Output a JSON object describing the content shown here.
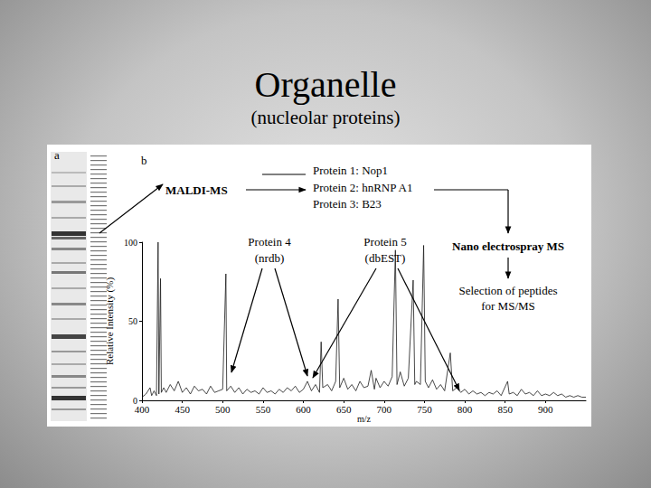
{
  "chart_data": {
    "type": "line",
    "title": "Organelle",
    "subtitle": "(nucleolar proteins)",
    "panel_labels": [
      "a",
      "b"
    ],
    "x_label": "m/z",
    "y_label": "Relative Intensity (%)",
    "x": [
      400,
      405,
      410,
      412,
      415,
      418,
      420,
      421,
      423,
      424,
      427,
      430,
      435,
      440,
      445,
      450,
      455,
      460,
      465,
      470,
      475,
      480,
      485,
      490,
      495,
      500,
      504,
      505,
      510,
      515,
      520,
      525,
      530,
      535,
      540,
      545,
      550,
      555,
      560,
      565,
      570,
      575,
      580,
      585,
      590,
      595,
      600,
      605,
      610,
      615,
      620,
      622,
      624,
      630,
      635,
      640,
      643,
      645,
      650,
      655,
      660,
      665,
      670,
      675,
      680,
      684,
      688,
      690,
      695,
      700,
      705,
      710,
      714,
      716,
      720,
      725,
      730,
      736,
      738,
      740,
      745,
      749,
      751,
      755,
      760,
      765,
      770,
      775,
      782,
      785,
      790,
      795,
      800,
      805,
      810,
      815,
      820,
      825,
      830,
      835,
      840,
      845,
      853,
      855,
      860,
      865,
      870,
      875,
      880,
      885,
      890,
      895,
      900,
      905,
      910,
      915,
      920,
      925,
      930,
      935,
      940,
      945,
      950
    ],
    "values": [
      2,
      4,
      8,
      3,
      6,
      3,
      100,
      4,
      77,
      5,
      8,
      5,
      10,
      6,
      12,
      5,
      8,
      4,
      9,
      6,
      7,
      4,
      9,
      5,
      6,
      7,
      80,
      6,
      9,
      5,
      8,
      4,
      7,
      5,
      6,
      4,
      8,
      5,
      6,
      4,
      7,
      5,
      8,
      6,
      9,
      5,
      7,
      12,
      6,
      10,
      5,
      37,
      8,
      10,
      6,
      12,
      64,
      8,
      14,
      7,
      10,
      6,
      12,
      8,
      9,
      19,
      7,
      14,
      8,
      12,
      9,
      15,
      95,
      10,
      18,
      9,
      14,
      76,
      10,
      12,
      10,
      98,
      12,
      8,
      13,
      7,
      10,
      6,
      30,
      6,
      8,
      5,
      7,
      4,
      6,
      4,
      5,
      3,
      5,
      4,
      6,
      3,
      12,
      4,
      5,
      3,
      7,
      4,
      5,
      3,
      6,
      3,
      4,
      3,
      5,
      3,
      4,
      2,
      3,
      2,
      3,
      2,
      2
    ],
    "color": "#1a1a1a",
    "xlim": [
      400,
      950
    ],
    "xticks": [
      400,
      450,
      500,
      550,
      600,
      650,
      700,
      750,
      800,
      850,
      900
    ],
    "ylim": [
      0,
      100
    ],
    "yticks": [
      0,
      50,
      100
    ],
    "grid": false,
    "annotations": {
      "maldi": "MALDI-MS",
      "proteins": [
        "Protein 1: Nop1",
        "Protein 2: hnRNP A1",
        "Protein 3: B23"
      ],
      "nano": "Nano electrospray MS",
      "selection": [
        "Selection of peptides",
        "for MS/MS"
      ],
      "protein4": [
        "Protein 4",
        "(nrdb)"
      ],
      "protein5": [
        "Protein 5",
        "(dbEST)"
      ]
    }
  }
}
